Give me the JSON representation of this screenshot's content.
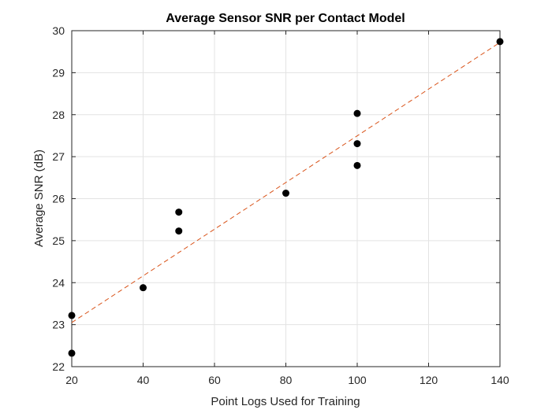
{
  "chart_data": {
    "type": "scatter",
    "title": "Average Sensor SNR per Contact Model",
    "xlabel": "Point Logs Used for Training",
    "ylabel": "Average SNR (dB)",
    "xlim": [
      20,
      140
    ],
    "ylim": [
      22,
      30
    ],
    "xticks": [
      "20",
      "40",
      "60",
      "80",
      "100",
      "120",
      "140"
    ],
    "yticks": [
      "22",
      "23",
      "24",
      "25",
      "26",
      "27",
      "28",
      "29",
      "30"
    ],
    "grid": true,
    "series": [
      {
        "type": "scatter",
        "color": "#000000",
        "points": [
          {
            "x": 20,
            "y": 23.22
          },
          {
            "x": 20,
            "y": 22.32
          },
          {
            "x": 40,
            "y": 23.88
          },
          {
            "x": 50,
            "y": 25.68
          },
          {
            "x": 50,
            "y": 25.23
          },
          {
            "x": 80,
            "y": 26.13
          },
          {
            "x": 100,
            "y": 28.03
          },
          {
            "x": 100,
            "y": 27.31
          },
          {
            "x": 100,
            "y": 26.79
          },
          {
            "x": 140,
            "y": 29.74
          }
        ]
      },
      {
        "type": "line",
        "style": "dashed",
        "color": "#D95319",
        "points": [
          {
            "x": 20,
            "y": 23.05
          },
          {
            "x": 140,
            "y": 29.72
          }
        ]
      }
    ]
  }
}
